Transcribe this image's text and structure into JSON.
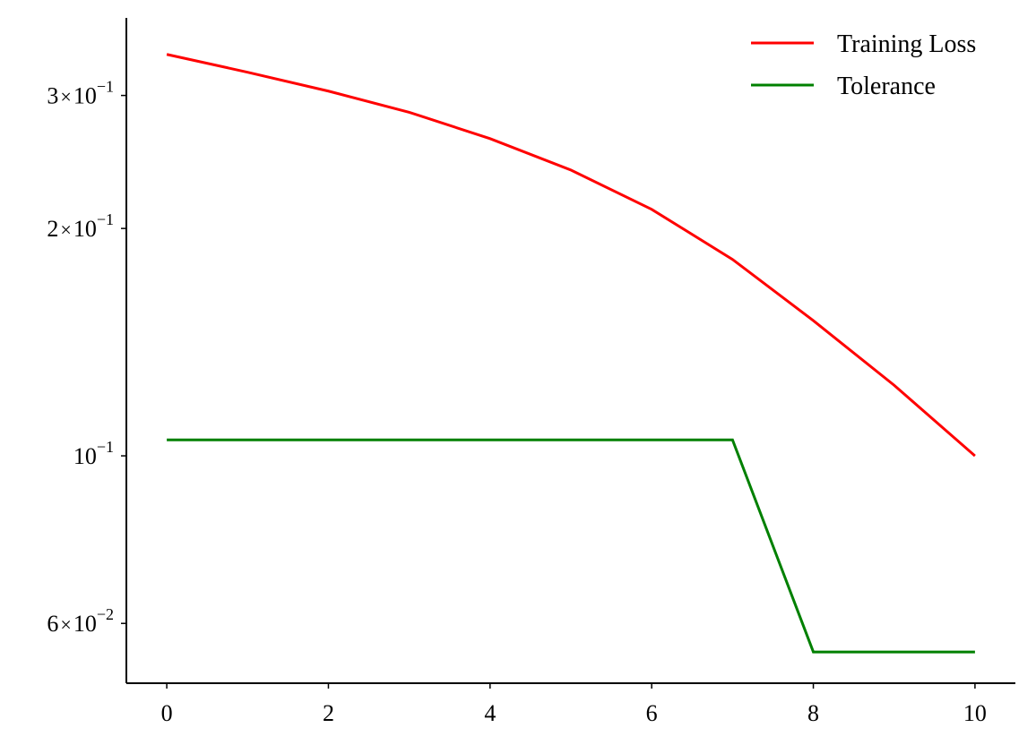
{
  "chart_data": {
    "type": "line",
    "title": "",
    "xlabel": "",
    "ylabel": "",
    "x": [
      0,
      1,
      2,
      3,
      4,
      5,
      6,
      7,
      8,
      9,
      10
    ],
    "series": [
      {
        "name": "Training Loss",
        "color": "#ff0000",
        "values": [
          0.34,
          0.322,
          0.304,
          0.285,
          0.263,
          0.239,
          0.212,
          0.182,
          0.151,
          0.124,
          0.1
        ]
      },
      {
        "name": "Tolerance",
        "color": "#008000",
        "values": [
          0.105,
          0.105,
          0.105,
          0.105,
          0.105,
          0.105,
          0.105,
          0.105,
          0.055,
          0.055,
          0.055
        ]
      }
    ],
    "xlim": [
      -0.5,
      10.5
    ],
    "ylim": [
      0.05,
      0.38
    ],
    "yscale": "log",
    "x_ticks": [
      {
        "value": 0,
        "label": "0"
      },
      {
        "value": 2,
        "label": "2"
      },
      {
        "value": 4,
        "label": "4"
      },
      {
        "value": 6,
        "label": "6"
      },
      {
        "value": 8,
        "label": "8"
      },
      {
        "value": 10,
        "label": "10"
      }
    ],
    "y_ticks": [
      {
        "value": 0.3,
        "mantissa": "3",
        "exponent": "−1"
      },
      {
        "value": 0.2,
        "mantissa": "2",
        "exponent": "−1"
      },
      {
        "value": 0.1,
        "mantissa": "",
        "exponent": "−1"
      },
      {
        "value": 0.06,
        "mantissa": "6",
        "exponent": "−2"
      }
    ],
    "legend": {
      "position": "top-right",
      "entries": [
        "Training Loss",
        "Tolerance"
      ]
    },
    "grid": false
  }
}
